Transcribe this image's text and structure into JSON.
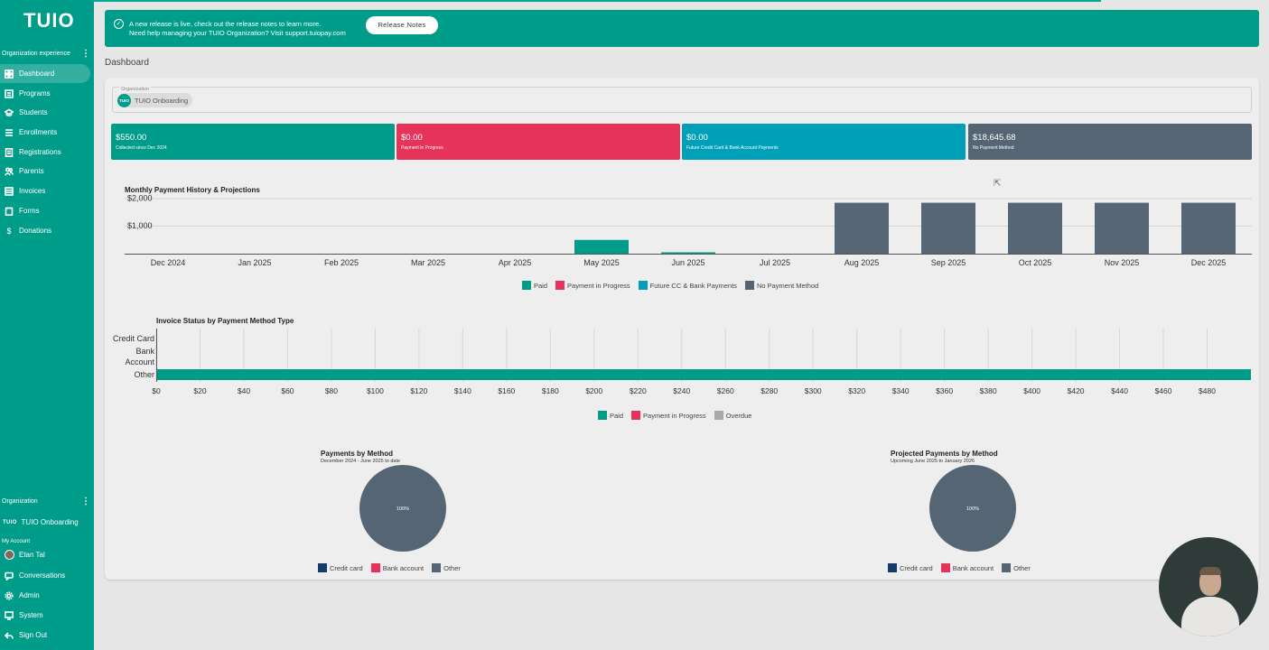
{
  "sidebar": {
    "logo": "TUIO",
    "section_label": "Organization experience",
    "items": [
      {
        "label": "Dashboard",
        "icon": "dashboard-icon"
      },
      {
        "label": "Programs",
        "icon": "programs-icon"
      },
      {
        "label": "Students",
        "icon": "students-icon"
      },
      {
        "label": "Enrollments",
        "icon": "enrollments-icon"
      },
      {
        "label": "Registrations",
        "icon": "registrations-icon"
      },
      {
        "label": "Parents",
        "icon": "parents-icon"
      },
      {
        "label": "Invoices",
        "icon": "invoices-icon"
      },
      {
        "label": "Forms",
        "icon": "forms-icon"
      },
      {
        "label": "Donations",
        "icon": "donations-icon"
      }
    ],
    "org_section_label": "Organization",
    "org_logo": "TUIO",
    "org_name": "TUIO Onboarding",
    "my_account_label": "My Account",
    "user_name": "Etan Tal",
    "bottom_items": [
      {
        "label": "Conversations",
        "icon": "conversations-icon"
      },
      {
        "label": "Admin",
        "icon": "admin-icon"
      },
      {
        "label": "System",
        "icon": "system-icon"
      },
      {
        "label": "Sign Out",
        "icon": "sign-out-icon"
      }
    ]
  },
  "banner": {
    "line1": "A new release is live, check out the release notes to learn more.",
    "line2": "Need help managing your TUIO Organization? Visit support.tuiopay.com",
    "button": "Release Notes"
  },
  "page_title": "Dashboard",
  "organization_field": {
    "label": "Organization",
    "chip_logo": "TUIO",
    "chip_text": "TUIO Onboarding"
  },
  "stats": [
    {
      "value": "$550.00",
      "label": "Collected since Dec 2024",
      "color": "#009c8a"
    },
    {
      "value": "$0.00",
      "label": "Payment In Progress",
      "color": "#e6335a"
    },
    {
      "value": "$0.00",
      "label": "Future Credit Card & Bank Account Payments",
      "color": "#00a1b8"
    },
    {
      "value": "$18,645.68",
      "label": "No Payment Method",
      "color": "#566573"
    }
  ],
  "colors": {
    "paid": "#009c8a",
    "in_progress": "#e6335a",
    "future": "#00a1b8",
    "no_method": "#566573",
    "overdue": "#a8a8a8",
    "credit_card": "#143d6b"
  },
  "chart_data": [
    {
      "type": "bar",
      "title": "Monthly Payment History & Projections",
      "categories": [
        "Dec 2024",
        "Jan 2025",
        "Feb 2025",
        "Mar 2025",
        "Apr 2025",
        "May 2025",
        "Jun 2025",
        "Jul 2025",
        "Aug 2025",
        "Sep 2025",
        "Oct 2025",
        "Nov 2025",
        "Dec 2025"
      ],
      "series": [
        {
          "name": "Paid",
          "values": [
            0,
            0,
            0,
            0,
            0,
            500,
            50,
            0,
            0,
            0,
            0,
            0,
            0
          ]
        },
        {
          "name": "Payment in Progress",
          "values": [
            0,
            0,
            0,
            0,
            0,
            0,
            0,
            0,
            0,
            0,
            0,
            0,
            0
          ]
        },
        {
          "name": "Future CC & Bank Payments",
          "values": [
            0,
            0,
            0,
            0,
            0,
            0,
            0,
            0,
            0,
            0,
            0,
            0,
            0
          ]
        },
        {
          "name": "No Payment Method",
          "values": [
            0,
            0,
            0,
            0,
            0,
            0,
            0,
            0,
            1850,
            1850,
            1850,
            1850,
            1850
          ]
        }
      ],
      "yticks": [
        "$1,000",
        "$2,000"
      ],
      "ylim": [
        0,
        2000
      ],
      "legend_position": "bottom",
      "stacked": true
    },
    {
      "type": "bar",
      "orientation": "horizontal",
      "title": "Invoice Status by Payment Method Type",
      "categories": [
        "Credit Card",
        "Bank Account",
        "Other"
      ],
      "series": [
        {
          "name": "Paid",
          "values": [
            0,
            0,
            500
          ]
        },
        {
          "name": "Payment in Progress",
          "values": [
            0,
            0,
            0
          ]
        },
        {
          "name": "Overdue",
          "values": [
            0,
            0,
            0
          ]
        }
      ],
      "xticks": [
        "$0",
        "$20",
        "$40",
        "$60",
        "$80",
        "$100",
        "$120",
        "$140",
        "$160",
        "$180",
        "$200",
        "$220",
        "$240",
        "$260",
        "$280",
        "$300",
        "$320",
        "$340",
        "$360",
        "$380",
        "$400",
        "$420",
        "$440",
        "$460",
        "$480"
      ],
      "xlim": [
        0,
        500
      ],
      "legend_position": "bottom",
      "grid": true
    },
    {
      "type": "pie",
      "title": "Payments by Method",
      "subtitle": "December 2024 - June 2025 to date",
      "slices": [
        {
          "name": "Credit card",
          "value": 0
        },
        {
          "name": "Bank account",
          "value": 0
        },
        {
          "name": "Other",
          "value": 100
        }
      ],
      "slice_label": "100%"
    },
    {
      "type": "pie",
      "title": "Projected Payments by Method",
      "subtitle": "Upcoming June 2025 to January 2026",
      "slices": [
        {
          "name": "Credit card",
          "value": 0
        },
        {
          "name": "Bank account",
          "value": 0
        },
        {
          "name": "Other",
          "value": 100
        }
      ],
      "slice_label": "100%"
    }
  ]
}
